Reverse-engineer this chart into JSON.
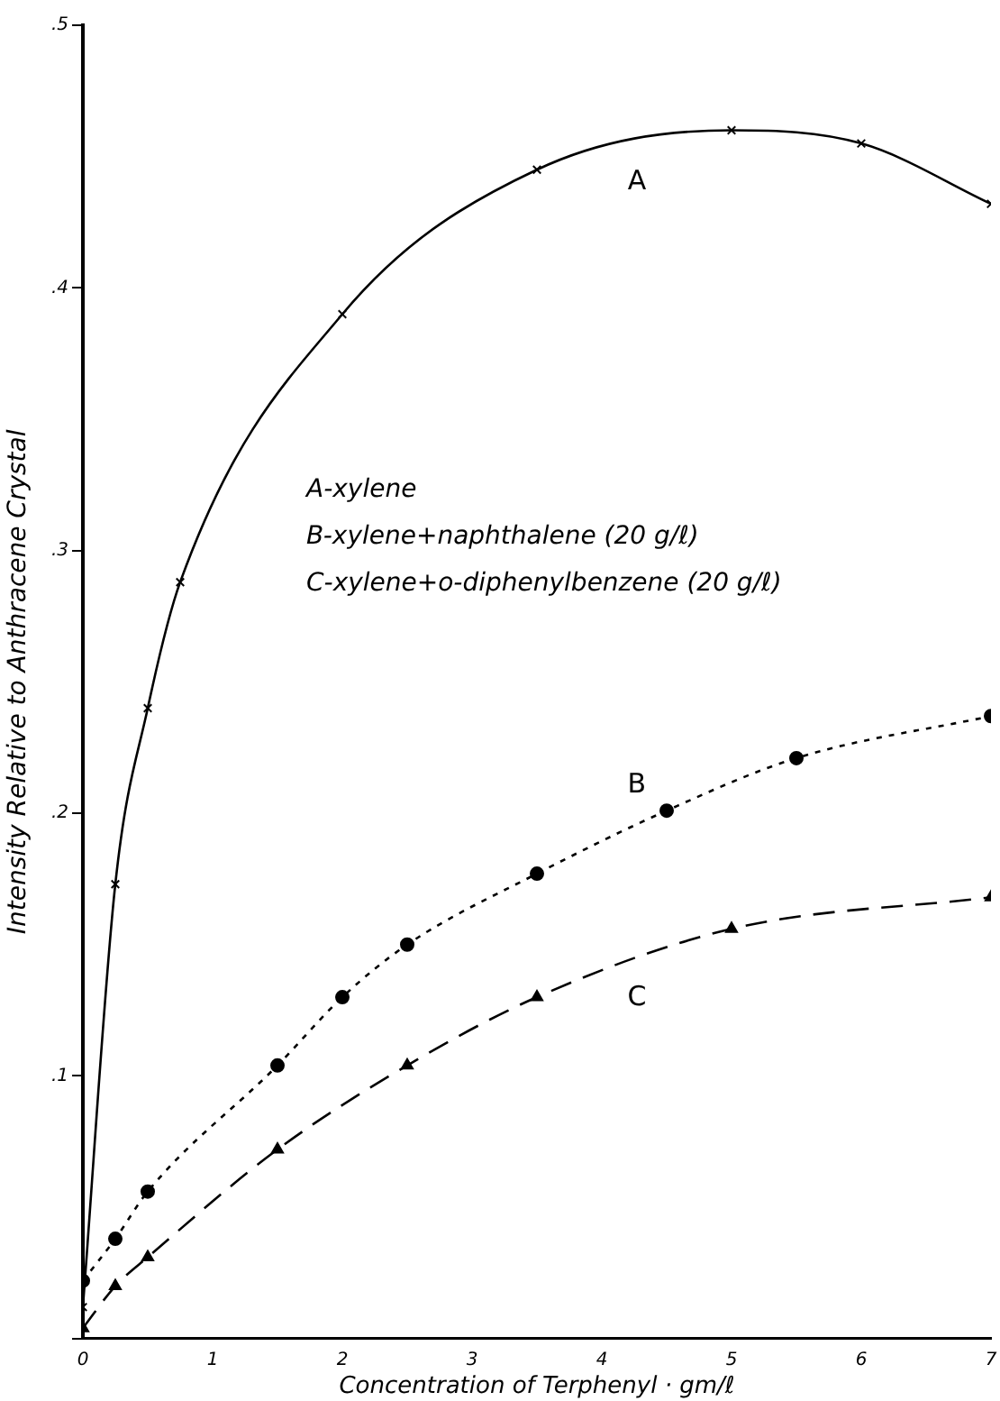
{
  "chart_data": {
    "type": "line",
    "xlabel": "Concentration of Terphenyl · gm/ℓ",
    "ylabel": "Intensity Relative to Anthracene Crystal",
    "xlim": [
      0,
      7
    ],
    "xticks": [
      0,
      1,
      2,
      3,
      4,
      5,
      6,
      7
    ],
    "ylim": [
      0,
      0.5
    ],
    "yticks": [
      {
        "value": 0,
        "label": null
      },
      {
        "value": 0.1,
        "label": ".1"
      },
      {
        "value": 0.2,
        "label": ".2"
      },
      {
        "value": 0.3,
        "label": ".3"
      },
      {
        "value": 0.4,
        "label": ".4"
      },
      {
        "value": 0.5,
        "label": ".5"
      }
    ],
    "grid": false,
    "legend": false,
    "series": [
      {
        "name": "A",
        "color": "#000000",
        "marker": "cross",
        "line_style": "solid",
        "x": [
          0,
          0.25,
          0.5,
          0.75,
          2,
          3.5,
          5,
          6,
          7
        ],
        "values": [
          0.012,
          0.173,
          0.24,
          0.288,
          0.39,
          0.445,
          0.46,
          0.455,
          0.432
        ]
      },
      {
        "name": "B",
        "color": "#000000",
        "marker": "circle",
        "line_style": "dotted",
        "x": [
          0,
          0.25,
          0.5,
          1.5,
          2,
          2.5,
          3.5,
          4.5,
          5.5,
          7
        ],
        "values": [
          0.022,
          0.038,
          0.056,
          0.104,
          0.13,
          0.15,
          0.177,
          0.201,
          0.221,
          0.237
        ]
      },
      {
        "name": "C",
        "color": "#000000",
        "marker": "triangle",
        "line_style": "dashed",
        "x": [
          0,
          0.25,
          0.5,
          1.5,
          2.5,
          3.5,
          5,
          7
        ],
        "values": [
          0.004,
          0.02,
          0.031,
          0.072,
          0.104,
          0.13,
          0.156,
          0.168
        ]
      }
    ],
    "annotations": [
      "A-xylene",
      "B-xylene+naphthalene (20 g/ℓ)",
      "C-xylene+o-diphenylbenzene (20 g/ℓ)"
    ]
  }
}
